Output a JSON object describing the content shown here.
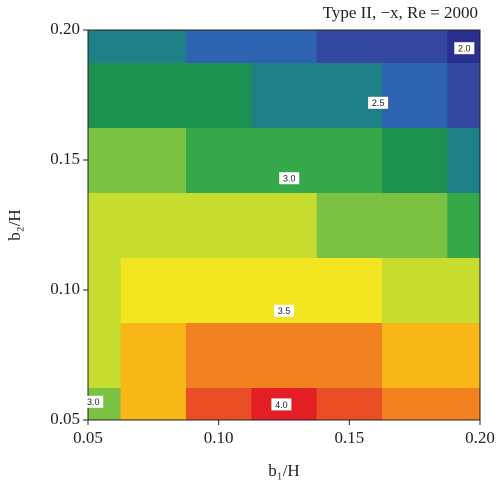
{
  "chart_data": {
    "type": "heatmap",
    "title": "Type II, −x, Re = 2000",
    "x_label": "b₁/H",
    "y_label": "b₂/H",
    "x": [
      0.05,
      0.075,
      0.1,
      0.125,
      0.15,
      0.175,
      0.2
    ],
    "y": [
      0.05,
      0.075,
      0.1,
      0.125,
      0.15,
      0.175,
      0.2
    ],
    "z": [
      [
        3.0,
        3.6,
        3.95,
        4.05,
        3.95,
        3.8,
        3.7
      ],
      [
        3.1,
        3.55,
        3.75,
        3.8,
        3.75,
        3.6,
        3.5
      ],
      [
        3.1,
        3.35,
        3.45,
        3.45,
        3.35,
        3.25,
        3.15
      ],
      [
        3.1,
        3.2,
        3.2,
        3.15,
        3.05,
        2.95,
        2.85
      ],
      [
        3.0,
        2.95,
        2.9,
        2.85,
        2.75,
        2.6,
        2.5
      ],
      [
        2.7,
        2.65,
        2.55,
        2.5,
        2.4,
        2.3,
        2.15
      ],
      [
        2.5,
        2.4,
        2.3,
        2.2,
        2.1,
        2.0,
        1.9
      ]
    ],
    "zlim": [
      1.8,
      4.2
    ],
    "colors": [
      "#2b2f8f",
      "#34489f",
      "#2d63b0",
      "#1f7f86",
      "#1d9150",
      "#35a94a",
      "#7cc242",
      "#c6dc2e",
      "#f3e51f",
      "#f8b617",
      "#f2821f",
      "#e94e24",
      "#e31e24"
    ],
    "xlim": [
      0.05,
      0.2
    ],
    "ylim": [
      0.05,
      0.2
    ],
    "xticks": [
      {
        "value": 0.05,
        "label": "0.05"
      },
      {
        "value": 0.1,
        "label": "0.10"
      },
      {
        "value": 0.15,
        "label": "0.15"
      },
      {
        "value": 0.2,
        "label": "0.20"
      }
    ],
    "yticks": [
      {
        "value": 0.05,
        "label": "0.05"
      },
      {
        "value": 0.1,
        "label": "0.10"
      },
      {
        "value": 0.15,
        "label": "0.15"
      },
      {
        "value": 0.2,
        "label": "0.20"
      }
    ],
    "contour_labels": [
      {
        "text": "2.0",
        "x": 0.194,
        "y": 0.193
      },
      {
        "text": "2.5",
        "x": 0.161,
        "y": 0.172
      },
      {
        "text": "3.0",
        "x": 0.127,
        "y": 0.143
      },
      {
        "text": "3.5",
        "x": 0.125,
        "y": 0.092
      },
      {
        "text": "4.0",
        "x": 0.124,
        "y": 0.056
      },
      {
        "text": "3.0",
        "x": 0.052,
        "y": 0.057
      }
    ]
  }
}
